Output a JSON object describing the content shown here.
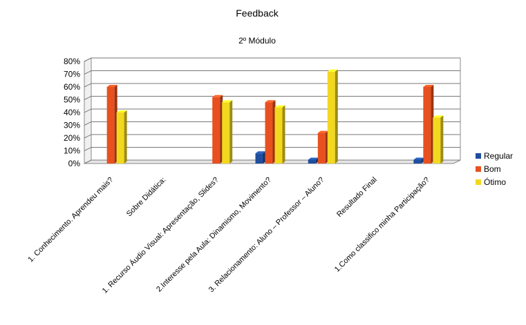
{
  "chart_data": {
    "type": "bar",
    "title": "Feedback",
    "subtitle": "2º Módulo",
    "xlabel": "",
    "ylabel": "",
    "ylim": [
      0,
      80
    ],
    "y_ticks": [
      "0%",
      "10%",
      "20%",
      "30%",
      "40%",
      "50%",
      "60%",
      "70%",
      "80%"
    ],
    "y_unit": "%",
    "grid": true,
    "legend_position": "right",
    "categories": [
      "1. Conhecimento. Aprendeu mais?",
      "Sobre Didática:",
      "1. Recurso Áudio Visual: Apresentação, Slides?",
      "2.Interesse pela Aula: Dinamismo, Movimento?",
      "3. Relacionamento: Aluno – Professor – Aluno?",
      "Resultado Final",
      "1.Como classifico minha Participação?"
    ],
    "series": [
      {
        "name": "Regular",
        "color": "#1f4e9e",
        "values": [
          0,
          0,
          0,
          8,
          3,
          0,
          3
        ]
      },
      {
        "name": "Bom",
        "color": "#e8501f",
        "values": [
          60,
          0,
          52,
          48,
          24,
          0,
          60
        ]
      },
      {
        "name": "Ótimo",
        "color": "#f2d81f",
        "values": [
          40,
          0,
          48,
          44,
          72,
          0,
          36
        ]
      }
    ]
  }
}
